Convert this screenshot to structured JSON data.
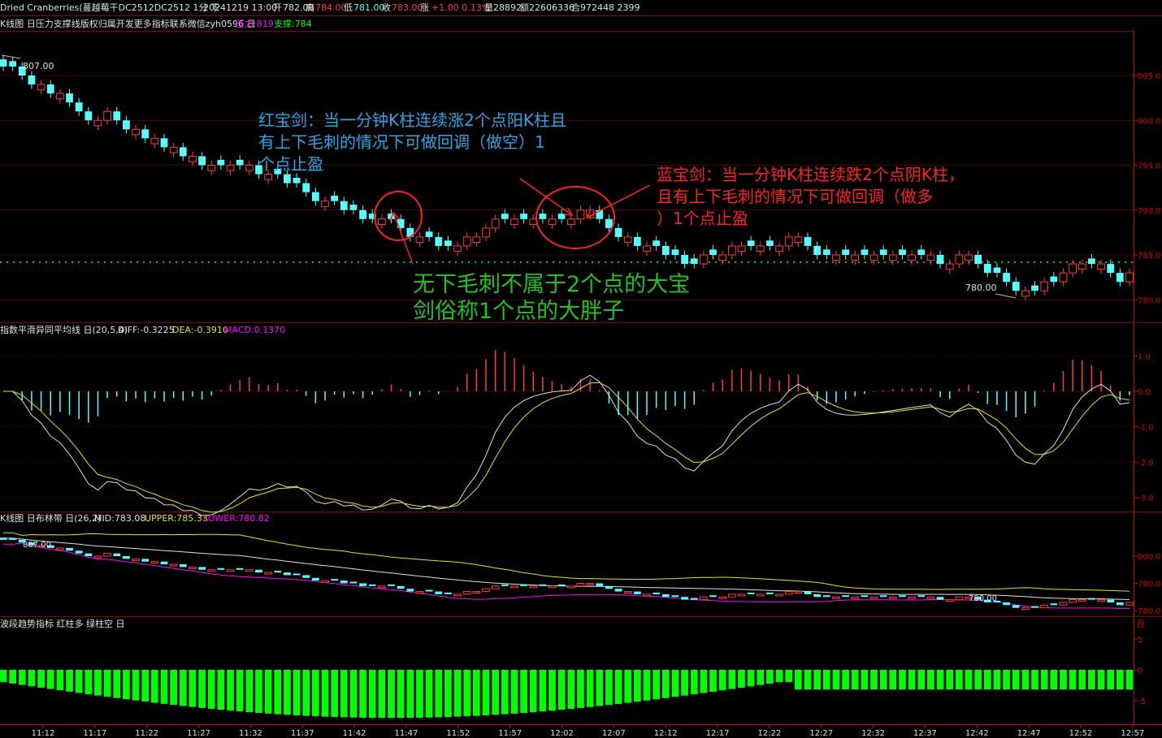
{
  "header": {
    "instrument": "Dried Cranberries(蔓越莓干DC2512DC2512 1分 下",
    "date": "20241219 13:00",
    "open_label": "开",
    "open": "782.00",
    "high_label": "高",
    "high": "784.00",
    "low_label": "低",
    "low": "781.00",
    "close_label": "收",
    "close": "783.00",
    "change_label": "涨",
    "change": "+1.00 0.13%",
    "volume": "量28892",
    "amount": "额22606336",
    "oi": "合972448 2399"
  },
  "panel1": {
    "title": "K线图 日压力支撑线版权归属开发更多指标联系微信zyh0596 日",
    "pressure_label": "压力:819",
    "support_label": "支撑:784",
    "high_marker": "807.00",
    "low_marker": "780.00",
    "axis_ticks": [
      805,
      800,
      795,
      790,
      785,
      780
    ],
    "axis_labels": [
      "805.0",
      "800.0",
      "795.0",
      "790.0",
      "785.0",
      "780.0"
    ]
  },
  "annotations": {
    "red_sword": [
      "红宝剑：当一分钟K柱连续涨2个点阳K柱且",
      "有上下毛刺的情况下可做回调（做空）1",
      "个点止盈"
    ],
    "blue_sword": [
      "蓝宝剑：当一分钟K柱连续跌2个点阴K柱，",
      "且有上下毛刺的情况下可做回调（做多",
      "）1个点止盈"
    ],
    "fat_note": [
      "无下毛刺不属于2个点的大宝",
      "剑俗称1个点的大胖子"
    ]
  },
  "panel2": {
    "title": "指数平滑异同平均线 日(20,5,4)",
    "diff": "DIFF:-0.3225",
    "dea": "DEA:-0.3910",
    "macd": "MACD:0.1370",
    "axis_labels": [
      "1.0",
      "0.0",
      "-1.0",
      "-2.0",
      "-3.0"
    ]
  },
  "panel3": {
    "title": "K线图 日布林带 日(26,2)",
    "mid": "MID:783.08",
    "upper": "UPPER:785.33",
    "lower": "LOWER:780.82",
    "high_marker": "807.00",
    "low_marker": "780.00",
    "axis_labels": [
      "800.0",
      "790.0",
      "780.0"
    ],
    "corner": "百"
  },
  "panel4": {
    "title": "波段趋势指标 红柱多 绿柱空 日",
    "axis_labels": [
      "5",
      "0",
      "-5"
    ]
  },
  "time_axis": [
    "11:12",
    "11:17",
    "11:22",
    "11:27",
    "11:32",
    "11:37",
    "11:42",
    "11:47",
    "11:52",
    "11:57",
    "12:02",
    "12:07",
    "12:12",
    "12:17",
    "12:22",
    "12:27",
    "12:32",
    "12:37",
    "12:42",
    "12:47",
    "12:52",
    "12:57"
  ],
  "colors": {
    "up": "#ff3b3b",
    "down": "#54ffff",
    "yellow": "#e6e600",
    "magenta": "#ff00ff",
    "green_bar": "#00ff00",
    "axis_red": "#d20000",
    "grid": "#8b0000",
    "annot_blue": "#2aa6e6",
    "annot_red": "#ff2020",
    "annot_green": "#22c222"
  },
  "chart_data": {
    "type": "candlestick",
    "interval": "1分",
    "ohlc_close": [
      806,
      806,
      805,
      804,
      804,
      803,
      803,
      802,
      801,
      800,
      800,
      801,
      800,
      799,
      799,
      798,
      798,
      797,
      797,
      796,
      796,
      795,
      795,
      795,
      795,
      795,
      795,
      794,
      794,
      794,
      793,
      793,
      792,
      791,
      791,
      791,
      790,
      790,
      789,
      789,
      789,
      789,
      788,
      787,
      787,
      787,
      786,
      786,
      786,
      787,
      787,
      788,
      789,
      789,
      789,
      789,
      789,
      789,
      789,
      789,
      789,
      790,
      790,
      789,
      788,
      787,
      787,
      786,
      786,
      786,
      785,
      785,
      784,
      784,
      785,
      785,
      785,
      786,
      786,
      786,
      786,
      786,
      786,
      787,
      787,
      786,
      785,
      785,
      785,
      785,
      785,
      785,
      785,
      785,
      785,
      785,
      785,
      785,
      785,
      784,
      784,
      785,
      785,
      784,
      783,
      783,
      782,
      781,
      781,
      781,
      782,
      782,
      783,
      784,
      784,
      784,
      784,
      783,
      782,
      783
    ],
    "macd_range": [
      -3.2,
      1.3
    ],
    "bollinger": {
      "mid_last": 783.08,
      "upper_last": 785.33,
      "lower_last": 780.82
    },
    "price_range": [
      779,
      808
    ]
  }
}
